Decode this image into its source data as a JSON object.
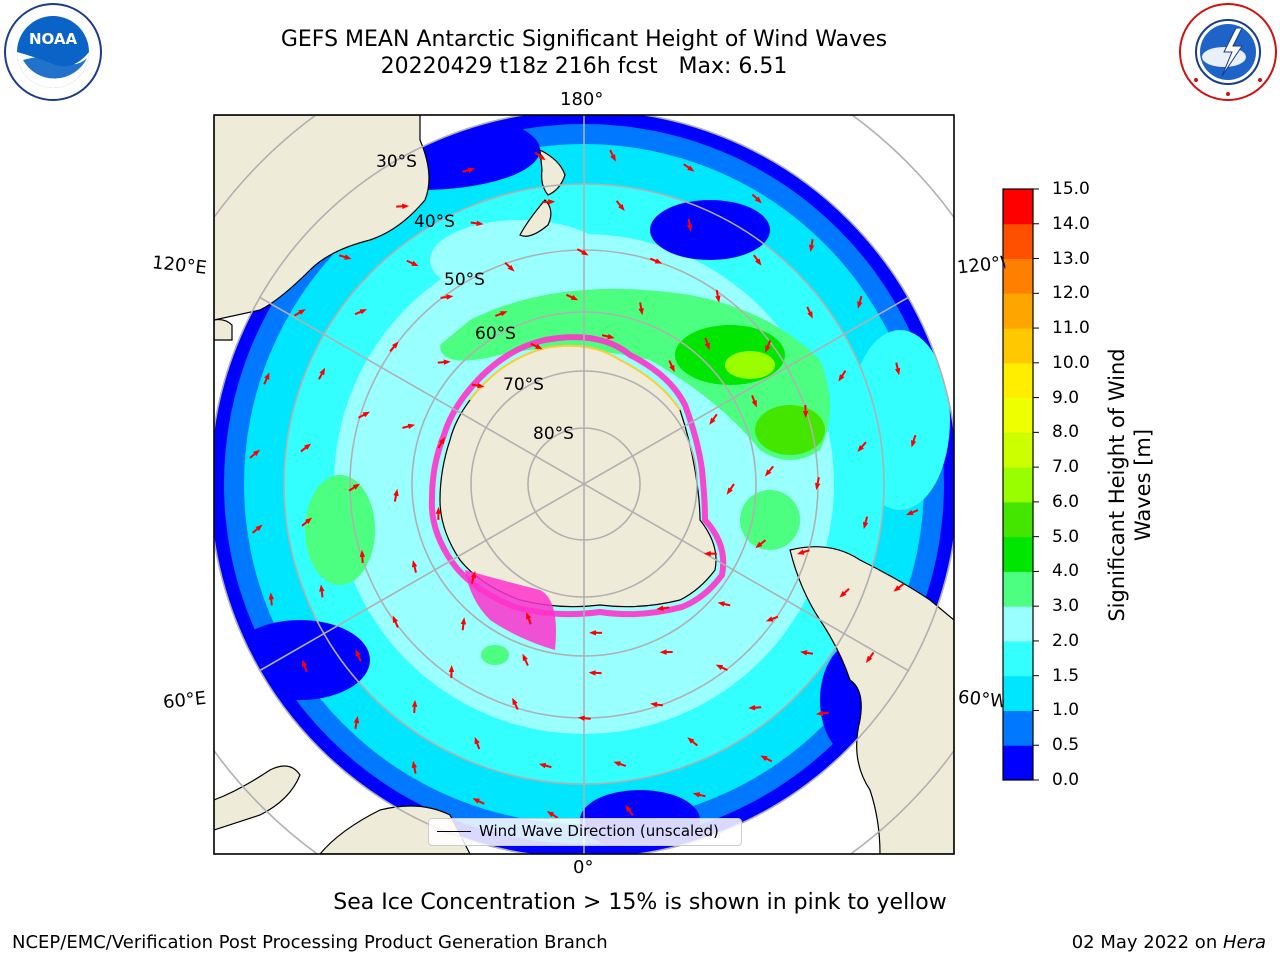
{
  "header": {
    "title_line1": "GEFS MEAN Antarctic Significant Height of Wind Waves",
    "title_line2": "20220429 t18z 216h fcst   Max: 6.51"
  },
  "logos": {
    "noaa": {
      "name": "noaa-logo",
      "text": "NOAA"
    },
    "nws": {
      "name": "national-weather-service-logo",
      "text": "NATIONAL WEATHER SERVICE"
    }
  },
  "map": {
    "projection": "south-polar-stereographic",
    "longitude_labels": {
      "top": "180°",
      "bottom": "0°",
      "upper_left": "120°E",
      "upper_right": "120°W",
      "lower_left": "60°E",
      "lower_right": "60°W"
    },
    "latitude_labels": [
      "30°S",
      "40°S",
      "50°S",
      "60°S",
      "70°S",
      "80°S"
    ],
    "colors": {
      "land": "#efebd9",
      "gridline": "#b0b0b0",
      "arrow": "#ff0000",
      "sea_ice_low": "#ff33cc",
      "sea_ice_high": "#ffcc33"
    }
  },
  "colorbar": {
    "label_line1": "Significant Height of Wind",
    "label_line2": "Waves [m]",
    "ticks": [
      "0.0",
      "0.5",
      "1.0",
      "1.5",
      "2.0",
      "3.0",
      "4.0",
      "5.0",
      "6.0",
      "7.0",
      "8.0",
      "9.0",
      "10.0",
      "11.0",
      "12.0",
      "13.0",
      "14.0",
      "15.0"
    ],
    "colors": [
      "#0000ff",
      "#0078ff",
      "#00e6ff",
      "#33ffff",
      "#99ffff",
      "#4dff80",
      "#00e600",
      "#44e600",
      "#99ff00",
      "#ccff00",
      "#eeff00",
      "#ffee00",
      "#ffc800",
      "#ffa500",
      "#ff8000",
      "#ff5000",
      "#ff0000"
    ]
  },
  "legend": {
    "text": "Wind Wave Direction (unscaled)"
  },
  "note": "Sea Ice Concentration > 15% is shown in pink to yellow",
  "footer": {
    "left": "NCEP/EMC/Verification Post Processing Product Generation Branch",
    "right_date": "02 May 2022 on ",
    "right_host": "Hera"
  }
}
